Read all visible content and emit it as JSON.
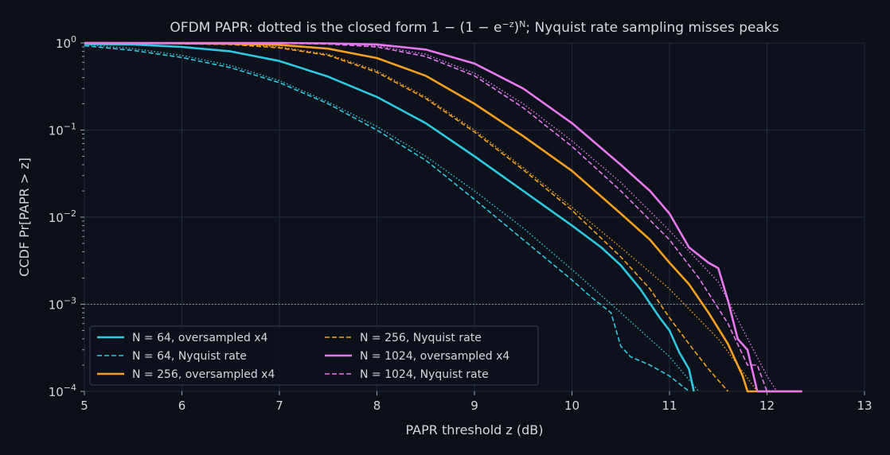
{
  "chart_data": {
    "type": "line",
    "title_prefix": "OFDM PAPR: dotted is the closed form ",
    "title_formula_a": "1 − (1 − e",
    "title_formula_exp1": "−z",
    "title_formula_b": ")",
    "title_formula_exp2": "N",
    "title_suffix": "; Nyquist rate sampling misses peaks",
    "xlabel": "PAPR threshold z (dB)",
    "ylabel": "CCDF  Pr[PAPR > z]",
    "xlim": [
      5,
      13
    ],
    "ylim": [
      0.0001,
      1
    ],
    "yscale": "log",
    "x_ticks": [
      "5",
      "6",
      "7",
      "8",
      "9",
      "10",
      "11",
      "12",
      "13"
    ],
    "y_ticks": [
      {
        "base": "10",
        "exp": "0",
        "value": 1
      },
      {
        "base": "10",
        "exp": "−1",
        "value": 0.1
      },
      {
        "base": "10",
        "exp": "−2",
        "value": 0.01
      },
      {
        "base": "10",
        "exp": "−3",
        "value": 0.001
      },
      {
        "base": "10",
        "exp": "−4",
        "value": 0.0001
      }
    ],
    "reference_line": 0.001,
    "grid": true,
    "legend_position": "bottom-left",
    "series": [
      {
        "name": "N = 64, oversampled x4",
        "color": "#2ec8e0",
        "style": "solid",
        "x": [
          5,
          5.5,
          6,
          6.5,
          7,
          7.5,
          8,
          8.5,
          9,
          9.5,
          10,
          10.3,
          10.5,
          10.7,
          10.9,
          11,
          11.1,
          11.2,
          11.25
        ],
        "y": [
          0.97,
          0.96,
          0.9,
          0.8,
          0.62,
          0.41,
          0.24,
          0.12,
          0.05,
          0.02,
          0.008,
          0.0045,
          0.0028,
          0.0015,
          0.0007,
          0.0005,
          0.00028,
          0.00018,
          0.0001
        ]
      },
      {
        "name": "N = 64, Nyquist rate",
        "color": "#2ec8e0",
        "style": "dashed",
        "x": [
          5,
          5.5,
          6,
          6.5,
          7,
          7.5,
          8,
          8.5,
          9,
          9.5,
          10,
          10.2,
          10.4,
          10.5,
          10.6,
          10.8,
          11,
          11.2
        ],
        "y": [
          0.93,
          0.82,
          0.68,
          0.52,
          0.35,
          0.2,
          0.1,
          0.045,
          0.016,
          0.0055,
          0.0019,
          0.0012,
          0.0008,
          0.00033,
          0.00025,
          0.0002,
          0.00015,
          0.0001
        ]
      },
      {
        "name": "N = 256, oversampled x4",
        "color": "#f5a020",
        "style": "solid",
        "x": [
          5,
          6,
          6.5,
          7,
          7.5,
          8,
          8.5,
          9,
          9.5,
          10,
          10.5,
          10.8,
          11,
          11.2,
          11.4,
          11.6,
          11.75,
          11.8,
          12,
          12.36
        ],
        "y": [
          1,
          0.99,
          0.98,
          0.95,
          0.86,
          0.67,
          0.42,
          0.2,
          0.085,
          0.034,
          0.011,
          0.0055,
          0.003,
          0.0017,
          0.0008,
          0.00035,
          0.00015,
          0.0001,
          0.0001,
          0.0001
        ]
      },
      {
        "name": "N = 256, Nyquist rate",
        "color": "#f5a020",
        "style": "dashed",
        "x": [
          5,
          6,
          6.5,
          7,
          7.5,
          8,
          8.5,
          9,
          9.5,
          10,
          10.5,
          10.8,
          11,
          11.2,
          11.4,
          11.6
        ],
        "y": [
          1,
          0.98,
          0.96,
          0.88,
          0.72,
          0.46,
          0.23,
          0.095,
          0.035,
          0.012,
          0.0035,
          0.0015,
          0.0007,
          0.00035,
          0.00018,
          0.0001
        ]
      },
      {
        "name": "N = 1024, oversampled x4",
        "color": "#e878f0",
        "style": "solid",
        "x": [
          5,
          7,
          7.5,
          8,
          8.5,
          9,
          9.5,
          10,
          10.5,
          10.8,
          11,
          11.2,
          11.4,
          11.5,
          11.6,
          11.7,
          11.8,
          11.9,
          12,
          12.36
        ],
        "y": [
          1,
          1,
          0.99,
          0.96,
          0.84,
          0.58,
          0.3,
          0.12,
          0.04,
          0.02,
          0.011,
          0.0045,
          0.003,
          0.0026,
          0.0011,
          0.0004,
          0.0003,
          0.0001,
          0.0001,
          0.0001
        ]
      },
      {
        "name": "N = 1024, Nyquist rate",
        "color": "#e878f0",
        "style": "dashed",
        "x": [
          5,
          7,
          7.5,
          8,
          8.5,
          9,
          9.5,
          10,
          10.5,
          11,
          11.3,
          11.6,
          11.8,
          11.9,
          12
        ],
        "y": [
          1,
          0.99,
          0.97,
          0.9,
          0.7,
          0.42,
          0.18,
          0.065,
          0.02,
          0.0055,
          0.002,
          0.0006,
          0.0002,
          0.0002,
          0.0001
        ]
      },
      {
        "name": "",
        "color": "#2ec8e0",
        "style": "dotted",
        "x": [
          5,
          5.5,
          6,
          6.5,
          7,
          7.5,
          8,
          8.5,
          9,
          9.5,
          10,
          10.5,
          11,
          11.3
        ],
        "y": [
          0.96,
          0.86,
          0.72,
          0.55,
          0.37,
          0.21,
          0.11,
          0.05,
          0.02,
          0.0075,
          0.0025,
          0.0008,
          0.00025,
          0.0001
        ]
      },
      {
        "name": "",
        "color": "#f5a020",
        "style": "dotted",
        "x": [
          5,
          6,
          6.5,
          7,
          7.5,
          8,
          8.5,
          9,
          9.5,
          10,
          10.5,
          11,
          11.5,
          11.9
        ],
        "y": [
          1,
          0.99,
          0.97,
          0.9,
          0.74,
          0.48,
          0.24,
          0.1,
          0.037,
          0.013,
          0.0045,
          0.0015,
          0.0004,
          0.0001
        ]
      },
      {
        "name": "",
        "color": "#e878f0",
        "style": "dotted",
        "x": [
          5,
          7,
          7.5,
          8,
          8.5,
          9,
          9.5,
          10,
          10.5,
          11,
          11.5,
          12,
          12.1
        ],
        "y": [
          1,
          1,
          0.99,
          0.93,
          0.74,
          0.45,
          0.2,
          0.075,
          0.025,
          0.007,
          0.0018,
          0.00015,
          0.0001
        ]
      }
    ]
  },
  "colors": {
    "background": "#0b0f16",
    "plot_background": "#0c111b",
    "grid": "#232b39"
  }
}
